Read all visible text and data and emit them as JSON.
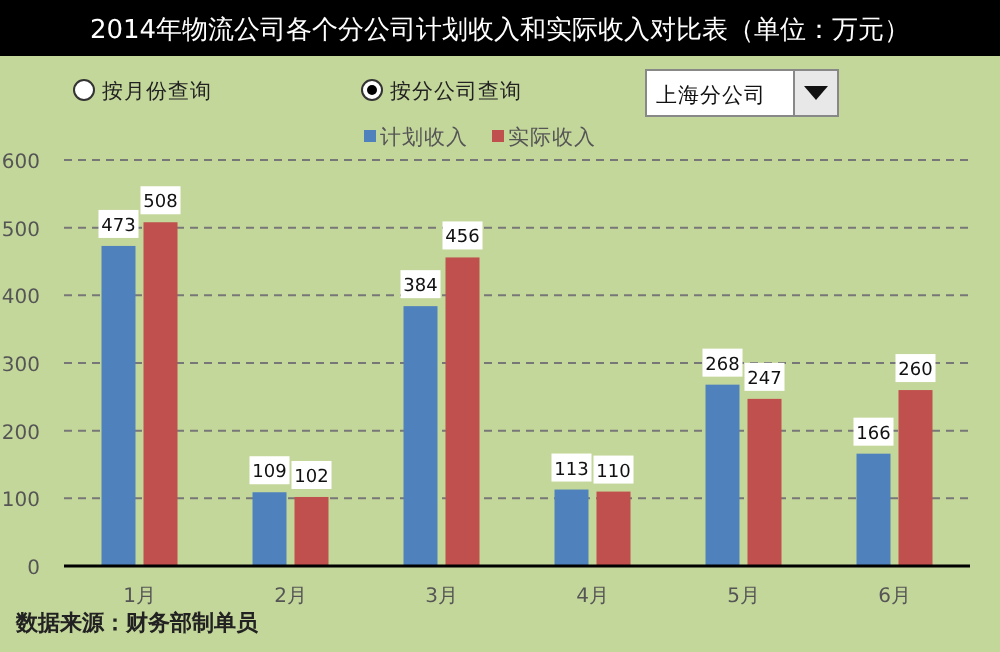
{
  "chart_data": {
    "type": "bar",
    "title": "2014年物流公司各个分公司计划收入和实际收入对比表（单位：万元）",
    "categories": [
      "1月",
      "2月",
      "3月",
      "4月",
      "5月",
      "6月"
    ],
    "series": [
      {
        "name": "计划收入",
        "color": "#4f81bd",
        "values": [
          473,
          109,
          384,
          113,
          268,
          166
        ]
      },
      {
        "name": "实际收入",
        "color": "#c0504d",
        "values": [
          508,
          102,
          456,
          110,
          247,
          260
        ]
      }
    ],
    "ylim": [
      0,
      600
    ],
    "yticks": [
      0,
      100,
      200,
      300,
      400,
      500,
      600
    ],
    "grid": "y",
    "legend": "top",
    "data_labels": true,
    "annotations": [
      "按月份查询",
      "按分公司查询",
      "上海分公司",
      "数据来源：财务部制单员"
    ]
  }
}
